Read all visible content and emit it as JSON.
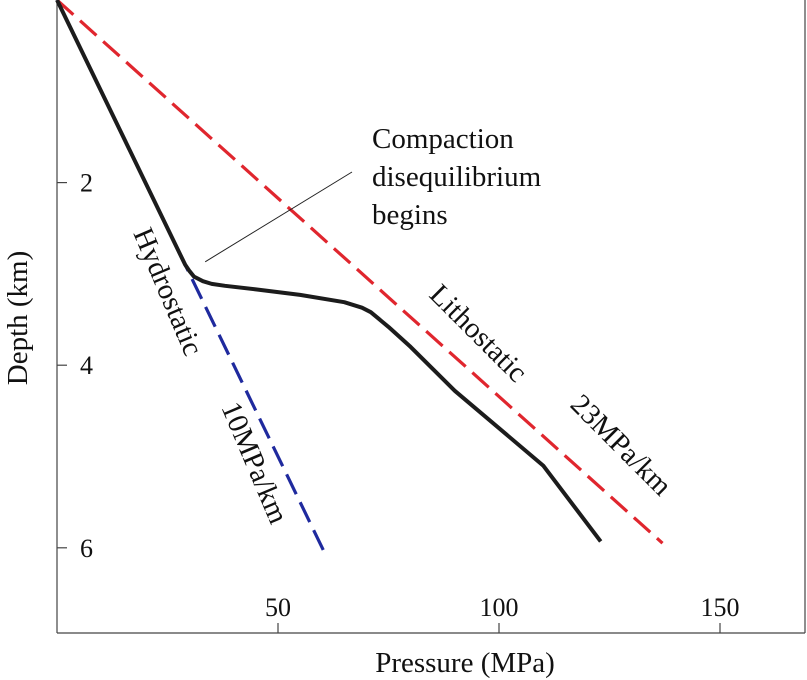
{
  "chart_data": {
    "type": "line",
    "xlabel": "Pressure (MPa)",
    "ylabel": "Depth (km)",
    "xlim": [
      0,
      170
    ],
    "ylim": [
      0,
      7
    ],
    "y_inverted": true,
    "grid": false,
    "x_ticks": [
      50,
      100,
      150
    ],
    "y_ticks": [
      2,
      4,
      6
    ],
    "x_tick_labels": [
      "50",
      "100",
      "150"
    ],
    "y_tick_labels": [
      "2",
      "4",
      "6"
    ],
    "series": [
      {
        "name": "Hydrostatic 10MPa/km",
        "color": "#1f2a9e",
        "style": "dashed",
        "x": [
          0,
          61
        ],
        "y": [
          0,
          6.1
        ]
      },
      {
        "name": "Lithostatic 23MPa/km",
        "color": "#e0262e",
        "style": "dashed",
        "x": [
          0,
          137
        ],
        "y": [
          0,
          5.95
        ]
      },
      {
        "name": "",
        "color": "#1c1c1c",
        "style": "solid",
        "x": [
          0,
          29,
          30,
          31,
          33,
          35,
          38,
          45,
          55,
          65,
          69,
          71,
          73,
          75,
          80,
          90,
          110,
          123
        ],
        "y": [
          0,
          2.9,
          2.97,
          3.03,
          3.08,
          3.11,
          3.13,
          3.17,
          3.23,
          3.31,
          3.37,
          3.42,
          3.5,
          3.58,
          3.8,
          4.28,
          5.1,
          5.93
        ]
      }
    ],
    "annotations": [
      {
        "lines": [
          "Compaction",
          "disequilibrium",
          "begins"
        ],
        "point": [
          29,
          2.9
        ]
      }
    ],
    "line_labels": {
      "hydrostatic": [
        "Hydrostatic",
        "10MPa/km"
      ],
      "lithostatic": [
        "Lithostatic",
        "23MPa/km"
      ]
    }
  }
}
